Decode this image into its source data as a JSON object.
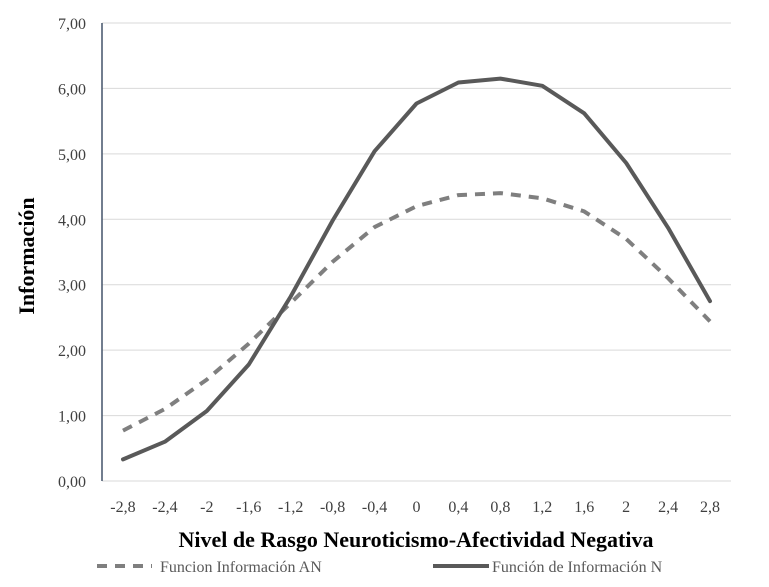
{
  "chart_data": {
    "type": "line",
    "xlabel": "Nivel de Rasgo Neuroticismo-Afectividad Negativa",
    "ylabel": "Información",
    "ylim": [
      0,
      7
    ],
    "y_ticks": [
      "0,00",
      "1,00",
      "2,00",
      "3,00",
      "4,00",
      "5,00",
      "6,00",
      "7,00"
    ],
    "categories": [
      "-2,8",
      "-2,4",
      "-2",
      "-1,6",
      "-1,2",
      "-0,8",
      "-0,4",
      "0",
      "0,4",
      "0,8",
      "1,2",
      "1,6",
      "2",
      "2,4",
      "2,8"
    ],
    "grid": true,
    "legend_position": "bottom",
    "series": [
      {
        "name": "Funcion Información AN",
        "style": "dashed",
        "color": "#7f7f7f",
        "values": [
          0.77,
          1.1,
          1.55,
          2.1,
          2.72,
          3.35,
          3.88,
          4.2,
          4.37,
          4.4,
          4.32,
          4.12,
          3.7,
          3.1,
          2.44
        ]
      },
      {
        "name": "Función de Información N",
        "style": "solid",
        "color": "#595959",
        "values": [
          0.33,
          0.6,
          1.07,
          1.78,
          2.82,
          3.98,
          5.04,
          5.77,
          6.09,
          6.15,
          6.04,
          5.62,
          4.86,
          3.87,
          2.75
        ]
      }
    ]
  }
}
